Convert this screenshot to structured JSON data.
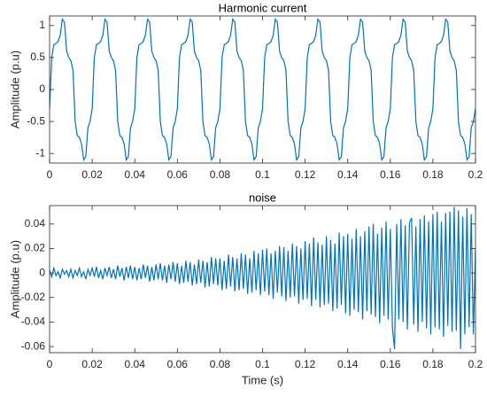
{
  "chart_data": [
    {
      "type": "line",
      "title": "Harmonic current",
      "y_label": "Amplitude (p.u)",
      "color": "#0072bd",
      "xlim": [
        0,
        0.2
      ],
      "xticks": [
        0,
        0.02,
        0.04,
        0.06,
        0.08,
        0.1,
        0.12,
        0.14,
        0.16,
        0.18,
        0.2
      ],
      "ylim": [
        -1.15,
        1.15
      ],
      "yticks": [
        -1,
        -0.5,
        0,
        0.5,
        1
      ],
      "x": [
        0,
        0.001,
        0.002,
        0.003,
        0.004,
        0.005,
        0.006,
        0.007,
        0.008,
        0.009,
        0.01,
        0.011,
        0.012,
        0.013,
        0.014,
        0.015,
        0.016,
        0.017,
        0.018,
        0.019,
        0.02,
        0.021,
        0.022,
        0.023,
        0.024,
        0.025,
        0.026,
        0.027,
        0.028,
        0.029,
        0.03,
        0.031,
        0.032,
        0.033,
        0.034,
        0.035,
        0.036,
        0.037,
        0.038,
        0.039,
        0.04,
        0.041,
        0.042,
        0.043,
        0.044,
        0.045,
        0.046,
        0.047,
        0.048,
        0.049,
        0.05,
        0.051,
        0.052,
        0.053,
        0.054,
        0.055,
        0.056,
        0.057,
        0.058,
        0.059,
        0.06,
        0.061,
        0.062,
        0.063,
        0.064,
        0.065,
        0.066,
        0.067,
        0.068,
        0.069,
        0.07,
        0.071,
        0.072,
        0.073,
        0.074,
        0.075,
        0.076,
        0.077,
        0.078,
        0.079,
        0.08,
        0.081,
        0.082,
        0.083,
        0.084,
        0.085,
        0.086,
        0.087,
        0.088,
        0.089,
        0.09,
        0.091,
        0.092,
        0.093,
        0.094,
        0.095,
        0.096,
        0.097,
        0.098,
        0.099,
        0.1,
        0.101,
        0.102,
        0.103,
        0.104,
        0.105,
        0.106,
        0.107,
        0.108,
        0.109,
        0.11,
        0.111,
        0.112,
        0.113,
        0.114,
        0.115,
        0.116,
        0.117,
        0.118,
        0.119,
        0.12,
        0.121,
        0.122,
        0.123,
        0.124,
        0.125,
        0.126,
        0.127,
        0.128,
        0.129,
        0.13,
        0.131,
        0.132,
        0.133,
        0.134,
        0.135,
        0.136,
        0.137,
        0.138,
        0.139,
        0.14,
        0.141,
        0.142,
        0.143,
        0.144,
        0.145,
        0.146,
        0.147,
        0.148,
        0.149,
        0.15,
        0.151,
        0.152,
        0.153,
        0.154,
        0.155,
        0.156,
        0.157,
        0.158,
        0.159,
        0.16,
        0.161,
        0.162,
        0.163,
        0.164,
        0.165,
        0.166,
        0.167,
        0.168,
        0.169,
        0.17,
        0.171,
        0.172,
        0.173,
        0.174,
        0.175,
        0.176,
        0.177,
        0.178,
        0.179,
        0.18,
        0.181,
        0.182,
        0.183,
        0.184,
        0.185,
        0.186,
        0.187,
        0.188,
        0.189,
        0.19,
        0.191,
        0.192,
        0.193,
        0.194,
        0.195,
        0.196,
        0.197,
        0.198,
        0.199,
        0.2
      ],
      "values": [
        -0.3,
        0.5,
        0.7,
        0.72,
        0.75,
        0.85,
        1.1,
        1.05,
        0.6,
        0.5,
        0.45,
        0.3,
        -0.5,
        -0.72,
        -0.75,
        -0.85,
        -1.1,
        -1.05,
        -0.6,
        -0.5,
        -0.3,
        0.5,
        0.7,
        0.72,
        0.75,
        0.85,
        1.1,
        1.05,
        0.6,
        0.5,
        0.45,
        0.3,
        -0.5,
        -0.72,
        -0.75,
        -0.85,
        -1.1,
        -1.05,
        -0.6,
        -0.5,
        -0.3,
        0.5,
        0.7,
        0.72,
        0.75,
        0.85,
        1.1,
        1.05,
        0.6,
        0.5,
        0.45,
        0.3,
        -0.5,
        -0.72,
        -0.75,
        -0.85,
        -1.1,
        -1.05,
        -0.6,
        -0.5,
        -0.3,
        0.5,
        0.7,
        0.72,
        0.75,
        0.85,
        1.1,
        1.05,
        0.6,
        0.5,
        0.45,
        0.3,
        -0.5,
        -0.72,
        -0.75,
        -0.85,
        -1.1,
        -1.05,
        -0.6,
        -0.5,
        -0.3,
        0.5,
        0.7,
        0.72,
        0.75,
        0.85,
        1.1,
        1.05,
        0.6,
        0.5,
        0.45,
        0.3,
        -0.5,
        -0.72,
        -0.75,
        -0.85,
        -1.1,
        -1.05,
        -0.6,
        -0.5,
        -0.3,
        0.5,
        0.7,
        0.72,
        0.75,
        0.85,
        1.1,
        1.05,
        0.6,
        0.5,
        0.45,
        0.3,
        -0.5,
        -0.72,
        -0.75,
        -0.85,
        -1.1,
        -1.05,
        -0.6,
        -0.5,
        -0.3,
        0.5,
        0.7,
        0.72,
        0.75,
        0.85,
        1.1,
        1.05,
        0.6,
        0.5,
        0.45,
        0.3,
        -0.5,
        -0.72,
        -0.75,
        -0.85,
        -1.1,
        -1.05,
        -0.6,
        -0.5,
        -0.3,
        0.5,
        0.7,
        0.72,
        0.75,
        0.85,
        1.1,
        1.05,
        0.6,
        0.5,
        0.45,
        0.3,
        -0.5,
        -0.72,
        -0.75,
        -0.85,
        -1.1,
        -1.05,
        -0.6,
        -0.5,
        -0.3,
        0.5,
        0.7,
        0.72,
        0.75,
        0.85,
        1.1,
        1.05,
        0.6,
        0.5,
        0.45,
        0.3,
        -0.5,
        -0.72,
        -0.75,
        -0.85,
        -1.1,
        -1.05,
        -0.6,
        -0.5,
        -0.3,
        0.5,
        0.7,
        0.72,
        0.75,
        0.85,
        1.1,
        1.05,
        0.6,
        0.5,
        0.45,
        0.3,
        -0.5,
        -0.72,
        -0.75,
        -0.85,
        -1.1,
        -1.05,
        -0.6,
        -0.5,
        -0.3
      ]
    },
    {
      "type": "line",
      "title": "noise",
      "x_label": "Time (s)",
      "y_label": "Amplitude (p.u)",
      "color": "#0072bd",
      "xlim": [
        0,
        0.2
      ],
      "xticks": [
        0,
        0.02,
        0.04,
        0.06,
        0.08,
        0.1,
        0.12,
        0.14,
        0.16,
        0.18,
        0.2
      ],
      "ylim": [
        -0.065,
        0.055
      ],
      "yticks": [
        -0.06,
        -0.04,
        -0.02,
        0,
        0.02,
        0.04
      ],
      "x": [
        0,
        0.001,
        0.002,
        0.003,
        0.004,
        0.005,
        0.006,
        0.007,
        0.008,
        0.009,
        0.01,
        0.011,
        0.012,
        0.013,
        0.014,
        0.015,
        0.016,
        0.017,
        0.018,
        0.019,
        0.02,
        0.021,
        0.022,
        0.023,
        0.024,
        0.025,
        0.026,
        0.027,
        0.028,
        0.029,
        0.03,
        0.031,
        0.032,
        0.033,
        0.034,
        0.035,
        0.036,
        0.037,
        0.038,
        0.039,
        0.04,
        0.041,
        0.042,
        0.043,
        0.044,
        0.045,
        0.046,
        0.047,
        0.048,
        0.049,
        0.05,
        0.051,
        0.052,
        0.053,
        0.054,
        0.055,
        0.056,
        0.057,
        0.058,
        0.059,
        0.06,
        0.061,
        0.062,
        0.063,
        0.064,
        0.065,
        0.066,
        0.067,
        0.068,
        0.069,
        0.07,
        0.071,
        0.072,
        0.073,
        0.074,
        0.075,
        0.076,
        0.077,
        0.078,
        0.079,
        0.08,
        0.081,
        0.082,
        0.083,
        0.084,
        0.085,
        0.086,
        0.087,
        0.088,
        0.089,
        0.09,
        0.091,
        0.092,
        0.093,
        0.094,
        0.095,
        0.096,
        0.097,
        0.098,
        0.099,
        0.1,
        0.101,
        0.102,
        0.103,
        0.104,
        0.105,
        0.106,
        0.107,
        0.108,
        0.109,
        0.11,
        0.111,
        0.112,
        0.113,
        0.114,
        0.115,
        0.116,
        0.117,
        0.118,
        0.119,
        0.12,
        0.121,
        0.122,
        0.123,
        0.124,
        0.125,
        0.126,
        0.127,
        0.128,
        0.129,
        0.13,
        0.131,
        0.132,
        0.133,
        0.134,
        0.135,
        0.136,
        0.137,
        0.138,
        0.139,
        0.14,
        0.141,
        0.142,
        0.143,
        0.144,
        0.145,
        0.146,
        0.147,
        0.148,
        0.149,
        0.15,
        0.151,
        0.152,
        0.153,
        0.154,
        0.155,
        0.156,
        0.157,
        0.158,
        0.159,
        0.16,
        0.161,
        0.162,
        0.163,
        0.164,
        0.165,
        0.166,
        0.167,
        0.168,
        0.169,
        0.17,
        0.171,
        0.172,
        0.173,
        0.174,
        0.175,
        0.176,
        0.177,
        0.178,
        0.179,
        0.18,
        0.181,
        0.182,
        0.183,
        0.184,
        0.185,
        0.186,
        0.187,
        0.188,
        0.189,
        0.19,
        0.191,
        0.192,
        0.193,
        0.194,
        0.195,
        0.196,
        0.197,
        0.198,
        0.199,
        0.2
      ],
      "values": [
        0.002,
        -0.003,
        0.004,
        -0.002,
        0.001,
        -0.004,
        0.003,
        -0.001,
        0.002,
        -0.003,
        0.003,
        -0.004,
        0.002,
        -0.002,
        0.004,
        -0.003,
        0.001,
        -0.005,
        0.003,
        -0.002,
        0.004,
        -0.003,
        0.005,
        -0.004,
        0.002,
        -0.005,
        0.004,
        -0.002,
        0.005,
        -0.004,
        0.003,
        -0.005,
        0.006,
        -0.003,
        0.004,
        -0.006,
        0.005,
        -0.004,
        0.006,
        -0.005,
        0.005,
        -0.006,
        0.004,
        -0.005,
        0.007,
        -0.004,
        0.006,
        -0.007,
        0.005,
        -0.006,
        0.007,
        -0.005,
        0.008,
        -0.006,
        0.006,
        -0.008,
        0.007,
        -0.005,
        0.009,
        -0.007,
        0.008,
        -0.009,
        0.006,
        -0.008,
        0.01,
        -0.007,
        0.009,
        -0.01,
        0.007,
        -0.009,
        0.011,
        -0.008,
        0.01,
        -0.012,
        0.009,
        -0.011,
        0.013,
        -0.009,
        0.012,
        -0.01,
        0.012,
        -0.014,
        0.01,
        -0.013,
        0.015,
        -0.011,
        0.013,
        -0.015,
        0.012,
        -0.014,
        0.016,
        -0.013,
        0.015,
        -0.017,
        0.012,
        -0.016,
        0.018,
        -0.014,
        0.016,
        -0.018,
        0.019,
        -0.015,
        0.02,
        -0.018,
        0.016,
        -0.021,
        0.018,
        -0.016,
        0.022,
        -0.019,
        0.021,
        -0.023,
        0.018,
        -0.02,
        0.024,
        -0.019,
        0.022,
        -0.025,
        0.02,
        -0.022,
        0.026,
        -0.021,
        0.024,
        -0.027,
        0.029,
        -0.022,
        0.025,
        -0.028,
        0.023,
        -0.026,
        0.03,
        -0.025,
        0.027,
        -0.031,
        0.024,
        -0.029,
        0.033,
        -0.026,
        0.03,
        -0.033,
        0.032,
        -0.035,
        0.028,
        -0.03,
        0.036,
        -0.032,
        0.03,
        -0.038,
        0.034,
        -0.031,
        0.038,
        -0.034,
        0.04,
        -0.036,
        0.032,
        -0.041,
        0.037,
        -0.035,
        0.042,
        -0.038,
        0.036,
        -0.045,
        -0.062,
        0.04,
        -0.038,
        0.044,
        -0.04,
        0.039,
        -0.046,
        0.041,
        0.045,
        -0.042,
        0.038,
        -0.048,
        0.044,
        -0.04,
        0.047,
        -0.045,
        0.042,
        -0.05,
        0.048,
        -0.044,
        0.05,
        -0.046,
        0.042,
        -0.052,
        0.049,
        -0.043,
        0.05,
        -0.048,
        0.054,
        -0.047,
        0.051,
        -0.062,
        0.046,
        -0.05,
        0.053,
        -0.044,
        0.048,
        -0.05,
        0.02
      ]
    }
  ]
}
